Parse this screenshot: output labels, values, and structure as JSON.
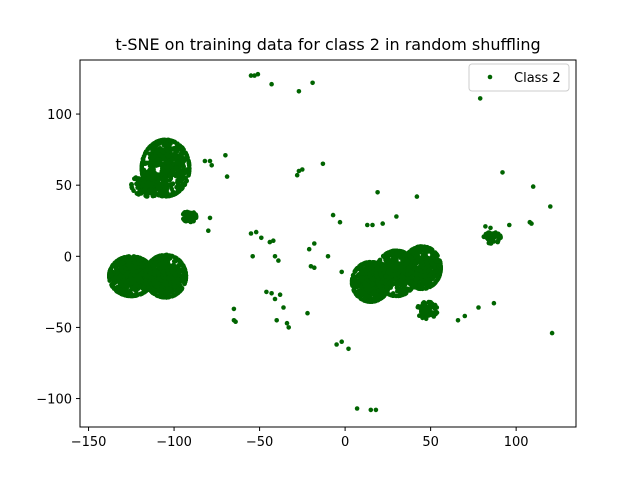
{
  "chart_data": {
    "type": "scatter",
    "title": "t-SNE on training data for class 2 in random shuffling",
    "xlabel": "",
    "ylabel": "",
    "xlim": [
      -155,
      135
    ],
    "ylim": [
      -120,
      138
    ],
    "xticks": [
      -150,
      -100,
      -50,
      0,
      50,
      100
    ],
    "yticks": [
      -100,
      -50,
      0,
      50,
      100
    ],
    "xtick_labels": [
      "−150",
      "−100",
      "−50",
      "0",
      "50",
      "100"
    ],
    "ytick_labels": [
      "−100",
      "−50",
      "0",
      "50",
      "100"
    ],
    "grid": false,
    "legend": {
      "placement": "top-right",
      "entries": [
        "Class 2"
      ]
    },
    "series": [
      {
        "name": "Class 2",
        "color": "#006400",
        "clusters": [
          {
            "cx": -105,
            "cy": 62,
            "rx": 14,
            "ry": 20,
            "n": 550
          },
          {
            "cx": -115,
            "cy": 50,
            "rx": 10,
            "ry": 8,
            "n": 150
          },
          {
            "cx": -91,
            "cy": 28,
            "rx": 4,
            "ry": 4,
            "n": 50
          },
          {
            "cx": -125,
            "cy": -14,
            "rx": 13,
            "ry": 14,
            "n": 600
          },
          {
            "cx": -105,
            "cy": -14,
            "rx": 12,
            "ry": 15,
            "n": 500
          },
          {
            "cx": 15,
            "cy": -18,
            "rx": 11,
            "ry": 14,
            "n": 450
          },
          {
            "cx": 45,
            "cy": -8,
            "rx": 11,
            "ry": 15,
            "n": 450
          },
          {
            "cx": 30,
            "cy": -12,
            "rx": 12,
            "ry": 16,
            "n": 400
          },
          {
            "cx": 48,
            "cy": -38,
            "rx": 6,
            "ry": 6,
            "n": 60
          },
          {
            "cx": 86,
            "cy": 13,
            "rx": 5,
            "ry": 4,
            "n": 60
          }
        ],
        "points": [
          [
            -55,
            127
          ],
          [
            -53,
            127
          ],
          [
            -51,
            128
          ],
          [
            -43,
            121
          ],
          [
            -27,
            116
          ],
          [
            -19,
            122
          ],
          [
            79,
            111
          ],
          [
            92,
            59
          ],
          [
            110,
            49
          ],
          [
            120,
            35
          ],
          [
            121,
            -54
          ],
          [
            78,
            -36
          ],
          [
            -82,
            67
          ],
          [
            -79,
            67
          ],
          [
            -78,
            64
          ],
          [
            -70,
            71
          ],
          [
            -69,
            56
          ],
          [
            -79,
            27
          ],
          [
            -80,
            18
          ],
          [
            -55,
            16
          ],
          [
            -52,
            17
          ],
          [
            -49,
            13
          ],
          [
            -54,
            0
          ],
          [
            -44,
            10
          ],
          [
            -42,
            11
          ],
          [
            -41,
            0
          ],
          [
            -39,
            -3
          ],
          [
            -28,
            57
          ],
          [
            -27,
            60
          ],
          [
            -25,
            61
          ],
          [
            -13,
            65
          ],
          [
            -21,
            5
          ],
          [
            -18,
            9
          ],
          [
            -20,
            -7
          ],
          [
            -18,
            -8
          ],
          [
            -46,
            -25
          ],
          [
            -43,
            -26
          ],
          [
            -41,
            -30
          ],
          [
            -38,
            -27
          ],
          [
            -36,
            -36
          ],
          [
            -34,
            -47
          ],
          [
            -33,
            -50
          ],
          [
            -40,
            -45
          ],
          [
            -22,
            -40
          ],
          [
            -65,
            -37
          ],
          [
            -64,
            -46
          ],
          [
            -65,
            -45
          ],
          [
            -7,
            29
          ],
          [
            -3,
            24
          ],
          [
            -10,
            0
          ],
          [
            -2,
            -11
          ],
          [
            -5,
            -62
          ],
          [
            -2,
            -60
          ],
          [
            2,
            -65
          ],
          [
            7,
            -107
          ],
          [
            15,
            -108
          ],
          [
            18,
            -108
          ],
          [
            19,
            45
          ],
          [
            42,
            42
          ],
          [
            30,
            28
          ],
          [
            13,
            22
          ],
          [
            16,
            22
          ],
          [
            22,
            23
          ],
          [
            70,
            -42
          ],
          [
            66,
            -45
          ],
          [
            87,
            -33
          ],
          [
            96,
            22
          ],
          [
            108,
            24
          ],
          [
            109,
            23
          ],
          [
            82,
            21
          ],
          [
            85,
            20
          ]
        ]
      }
    ]
  }
}
